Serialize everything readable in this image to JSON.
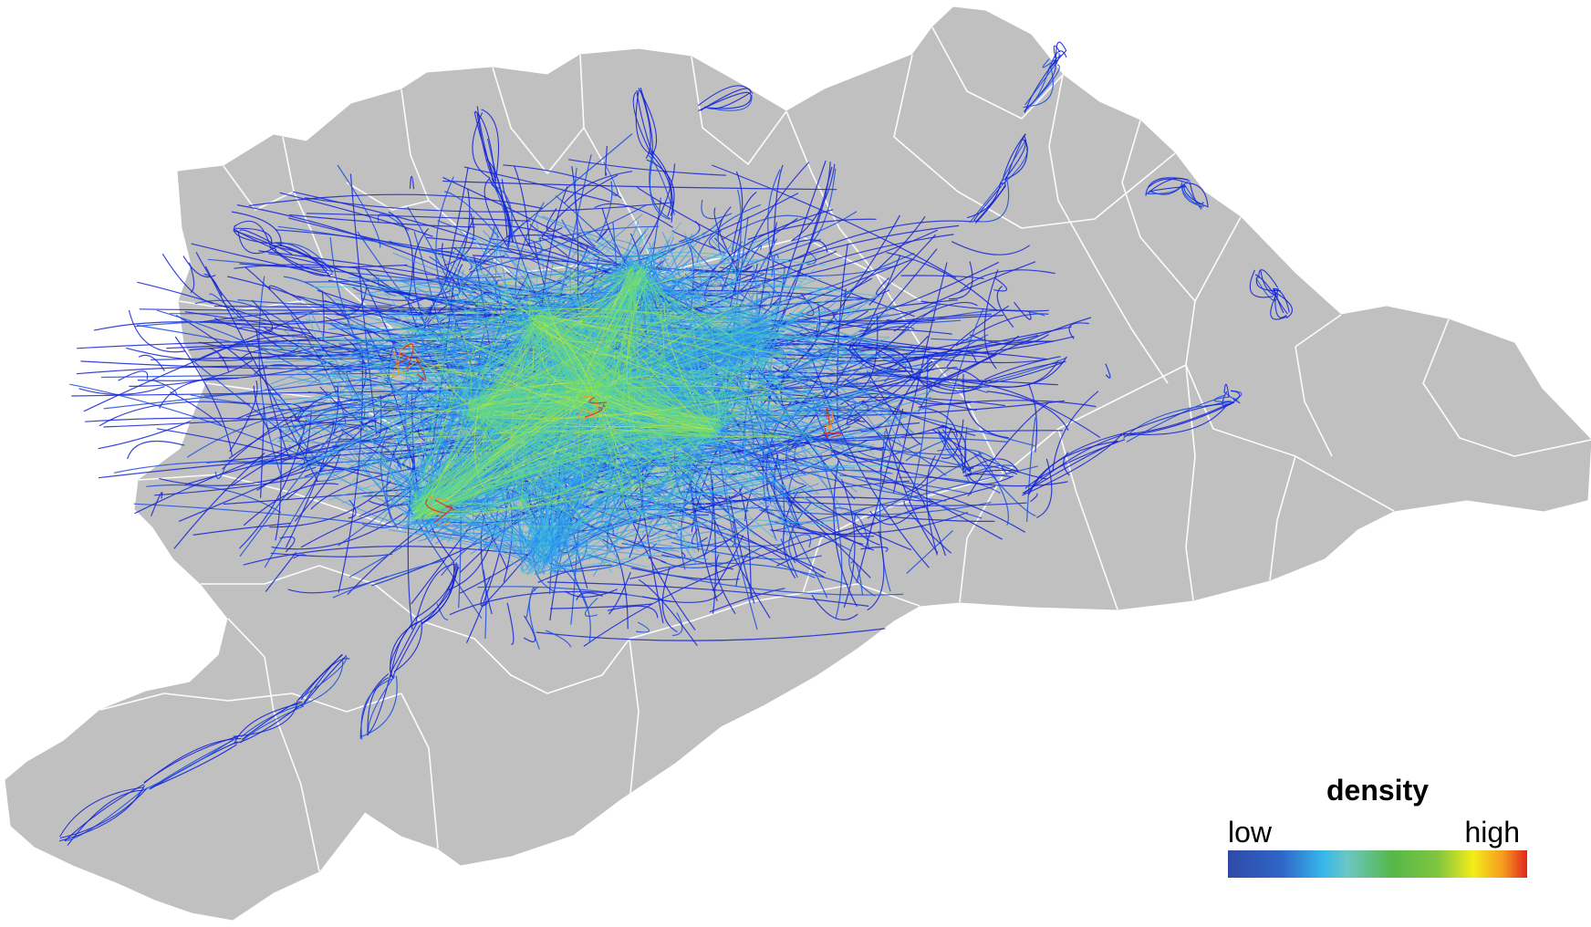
{
  "map": {
    "region_fill": "#c0c0c0",
    "boundary_color": "#ffffff",
    "flow_colors": [
      "#1524d6",
      "#1c4fe0",
      "#2a8ff0",
      "#3fbcdc",
      "#52d1a8",
      "#7fe05a",
      "#c6e63b",
      "#f29a23",
      "#e0261e"
    ]
  },
  "legend": {
    "title": "density",
    "low_label": "low",
    "high_label": "high",
    "gradient_colors": [
      "#2f4aa6",
      "#37b8ea",
      "#55b848",
      "#f4ec1a",
      "#e0261e"
    ]
  }
}
